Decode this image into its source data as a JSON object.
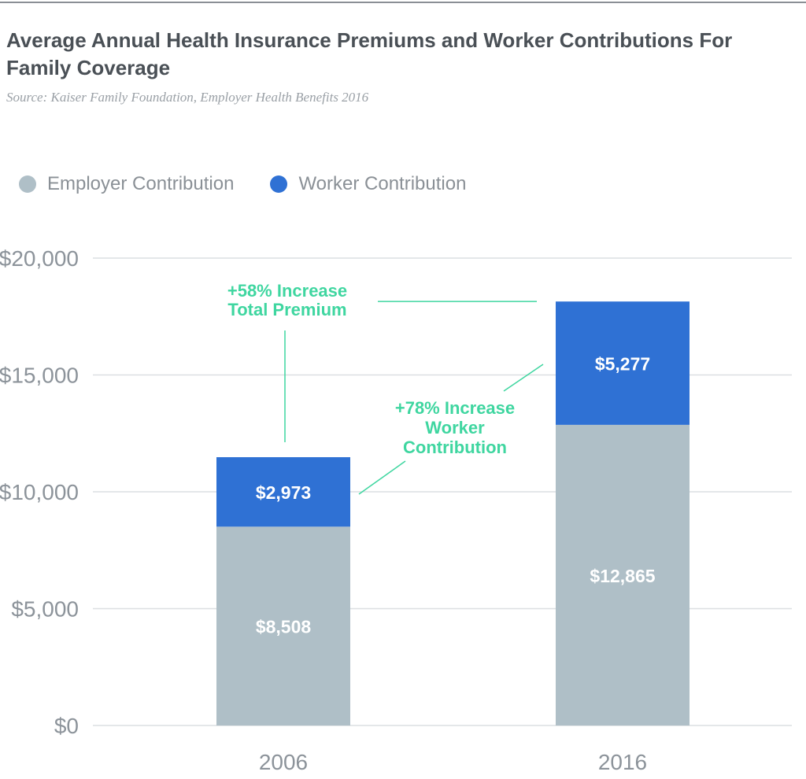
{
  "chart_data": {
    "type": "bar",
    "stacked": true,
    "title": "Average Annual Health Insurance Premiums and Worker Contributions For Family Coverage",
    "subtitle": "Source: Kaiser Family Foundation, Employer Health Benefits 2016",
    "categories": [
      "2006",
      "2016"
    ],
    "series": [
      {
        "name": "Employer Contribution",
        "color": "#afbfc7",
        "values": [
          8508,
          12865
        ],
        "labels": [
          "$8,508",
          "$12,865"
        ]
      },
      {
        "name": "Worker Contribution",
        "color": "#2f71d4",
        "values": [
          2973,
          5277
        ],
        "labels": [
          "$2,973",
          "$5,277"
        ]
      }
    ],
    "ylim": [
      0,
      20000
    ],
    "yticks": [
      0,
      5000,
      10000,
      15000,
      20000
    ],
    "ytick_labels": [
      "$0",
      "$5,000",
      "$10,000",
      "$15,000",
      "$20,000"
    ],
    "grid": true,
    "legend": "top-left",
    "annotations": [
      {
        "id": "total",
        "lines": [
          "+58% Increase",
          "Total Premium"
        ]
      },
      {
        "id": "worker",
        "lines": [
          "+78% Increase",
          "Worker",
          "Contribution"
        ]
      }
    ],
    "annotation_color": "#3fd6a0"
  }
}
